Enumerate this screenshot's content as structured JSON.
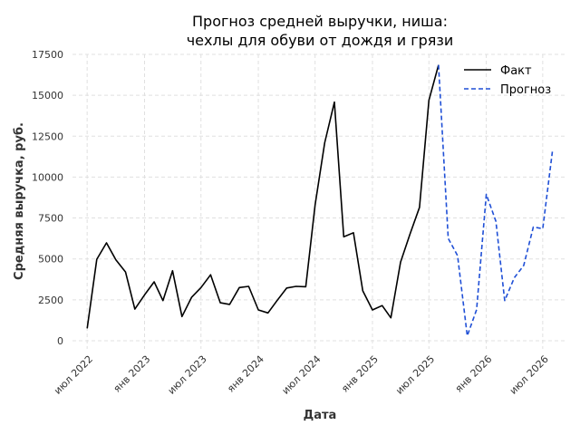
{
  "chart_data": {
    "type": "line",
    "title_lines": [
      "Прогноз средней выручки, ниша:",
      "чехлы для обуви от дождя и грязи"
    ],
    "xlabel": "Дата",
    "ylabel": "Средняя выручка, руб.",
    "ylim": [
      -500,
      17500
    ],
    "yticks": [
      0,
      2500,
      5000,
      7500,
      10000,
      12500,
      15000,
      17500
    ],
    "ytick_labels": [
      "0",
      "2500",
      "5000",
      "7500",
      "10000",
      "12500",
      "15000",
      "17500"
    ],
    "xlim": [
      "2022-05-15",
      "2026-09-15"
    ],
    "xticks": [
      "2022-07-01",
      "2023-01-01",
      "2023-07-01",
      "2024-01-01",
      "2024-07-01",
      "2025-01-01",
      "2025-07-01",
      "2026-01-01",
      "2026-07-01"
    ],
    "xtick_labels": [
      "июл 2022",
      "янв 2023",
      "июл 2023",
      "янв 2024",
      "июл 2024",
      "янв 2025",
      "июл 2025",
      "янв 2026",
      "июл 2026"
    ],
    "grid": true,
    "legend_position": "top-right",
    "series": [
      {
        "name": "Факт",
        "color": "#000000",
        "style": "solid",
        "x": [
          "2022-07-01",
          "2022-08-01",
          "2022-09-01",
          "2022-10-01",
          "2022-11-01",
          "2022-12-01",
          "2023-01-01",
          "2023-02-01",
          "2023-03-01",
          "2023-04-01",
          "2023-05-01",
          "2023-06-01",
          "2023-07-01",
          "2023-08-01",
          "2023-09-01",
          "2023-10-01",
          "2023-11-01",
          "2023-12-01",
          "2024-01-01",
          "2024-02-01",
          "2024-03-01",
          "2024-04-01",
          "2024-05-01",
          "2024-06-01",
          "2024-07-01",
          "2024-08-01",
          "2024-09-01",
          "2024-10-01",
          "2024-11-01",
          "2024-12-01",
          "2025-01-01",
          "2025-02-01",
          "2025-03-01",
          "2025-04-01",
          "2025-05-01",
          "2025-06-01",
          "2025-07-01",
          "2025-08-01"
        ],
        "y": [
          750,
          4980,
          5980,
          4950,
          4200,
          1930,
          2800,
          3600,
          2450,
          4280,
          1480,
          2650,
          3250,
          4030,
          2320,
          2220,
          3250,
          3320,
          1880,
          1700,
          2450,
          3220,
          3320,
          3300,
          8300,
          12100,
          14580,
          6350,
          6600,
          3050,
          1880,
          2150,
          1400,
          4800,
          6500,
          8150,
          14700,
          16850
        ]
      },
      {
        "name": "Прогноз",
        "color": "#1f4fd6",
        "style": "dashed",
        "x": [
          "2025-08-01",
          "2025-09-01",
          "2025-10-01",
          "2025-11-01",
          "2025-12-01",
          "2026-01-01",
          "2026-02-01",
          "2026-03-01",
          "2026-04-01",
          "2026-05-01",
          "2026-06-01",
          "2026-07-01",
          "2026-08-01"
        ],
        "y": [
          16850,
          6250,
          5200,
          300,
          1900,
          8950,
          7300,
          2450,
          3850,
          4600,
          6950,
          6850,
          11550
        ]
      }
    ]
  }
}
